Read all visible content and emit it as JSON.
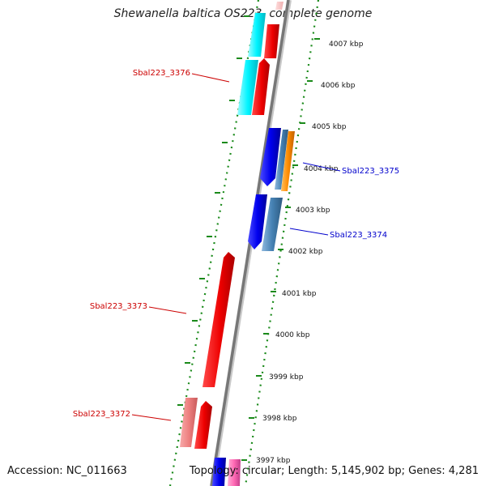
{
  "title": "Shewanella baltica OS223, complete genome",
  "accession": "Accession: NC_011663",
  "topology": "Topology: circular; Length: 5,145,902 bp; Genes: 4,281",
  "colors": {
    "backbone": "#888888",
    "ticks": "#1a8a1a",
    "forward_gene": "#ff0000",
    "forward_gene_faded": "#f08080",
    "cyan_gene": "#00ffff",
    "blue_gene": "#0000ff",
    "steelblue_gene": "#4682b4",
    "orange_gene": "#ff8c00",
    "pink_gene": "#ff69b4",
    "red_label": "#cc0000",
    "blue_label": "#0000cc"
  },
  "scale_labels": [
    "4007 kbp",
    "4006 kbp",
    "4005 kbp",
    "4004 kbp",
    "4003 kbp",
    "4002 kbp",
    "4001 kbp",
    "4000 kbp",
    "3999 kbp",
    "3998 kbp",
    "3997 kbp"
  ],
  "gene_labels": [
    {
      "text": "Sbal223_3376",
      "color": "red"
    },
    {
      "text": "Sbal223_3375",
      "color": "blue"
    },
    {
      "text": "Sbal223_3374",
      "color": "blue"
    },
    {
      "text": "Sbal223_3373",
      "color": "red"
    },
    {
      "text": "Sbal223_3372",
      "color": "red"
    }
  ]
}
